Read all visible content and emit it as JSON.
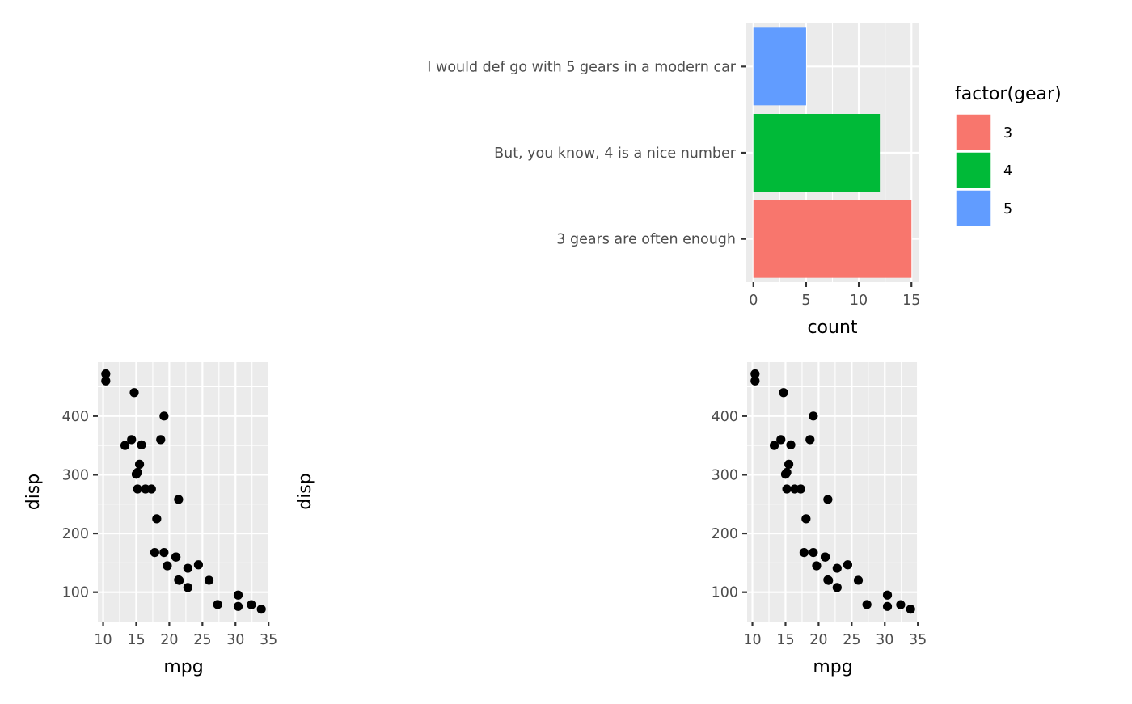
{
  "chart_data": [
    {
      "type": "bar",
      "orientation": "horizontal",
      "categories": [
        "3 gears are often enough",
        "But, you know, 4 is a nice number",
        "I would def go with 5 gears in a modern car"
      ],
      "values": [
        15,
        12,
        5
      ],
      "colors": [
        "#F8766D",
        "#00BA38",
        "#619CFF"
      ],
      "xlabel": "count",
      "ylabel": "",
      "xlim": [
        -0.75,
        15.75
      ],
      "xticks": [
        0,
        5,
        10,
        15
      ],
      "grid": true,
      "legend": {
        "title": "factor(gear)",
        "position": "right",
        "entries": [
          {
            "label": "3",
            "color": "#F8766D"
          },
          {
            "label": "4",
            "color": "#00BA38"
          },
          {
            "label": "5",
            "color": "#619CFF"
          }
        ]
      }
    },
    {
      "type": "scatter",
      "xlabel": "mpg",
      "ylabel": "disp",
      "xlim": [
        9.2,
        35.1
      ],
      "ylim": [
        50,
        492
      ],
      "xticks": [
        10,
        15,
        20,
        25,
        30,
        35
      ],
      "yticks": [
        100,
        200,
        300,
        400
      ],
      "grid": true,
      "points": [
        [
          21.0,
          160
        ],
        [
          21.0,
          160
        ],
        [
          22.8,
          108
        ],
        [
          21.4,
          258
        ],
        [
          18.7,
          360
        ],
        [
          18.1,
          225
        ],
        [
          14.3,
          360
        ],
        [
          24.4,
          146.7
        ],
        [
          22.8,
          140.8
        ],
        [
          19.2,
          167.6
        ],
        [
          17.8,
          167.6
        ],
        [
          16.4,
          275.8
        ],
        [
          17.3,
          275.8
        ],
        [
          15.2,
          275.8
        ],
        [
          10.4,
          472
        ],
        [
          10.4,
          460
        ],
        [
          14.7,
          440
        ],
        [
          32.4,
          78.7
        ],
        [
          30.4,
          75.7
        ],
        [
          33.9,
          71.1
        ],
        [
          21.5,
          120.1
        ],
        [
          15.5,
          318
        ],
        [
          15.2,
          304
        ],
        [
          13.3,
          350
        ],
        [
          19.2,
          400
        ],
        [
          27.3,
          79
        ],
        [
          26.0,
          120.3
        ],
        [
          30.4,
          95.1
        ],
        [
          15.8,
          351
        ],
        [
          19.7,
          145
        ],
        [
          15.0,
          301
        ],
        [
          21.4,
          121
        ]
      ]
    },
    {
      "type": "empty",
      "ylabel": "disp"
    },
    {
      "type": "scatter",
      "xlabel": "mpg",
      "ylabel": "",
      "xlim": [
        9.2,
        35.1
      ],
      "ylim": [
        50,
        492
      ],
      "xticks": [
        10,
        15,
        20,
        25,
        30,
        35
      ],
      "yticks": [
        100,
        200,
        300,
        400
      ],
      "grid": true,
      "points": [
        [
          21.0,
          160
        ],
        [
          21.0,
          160
        ],
        [
          22.8,
          108
        ],
        [
          21.4,
          258
        ],
        [
          18.7,
          360
        ],
        [
          18.1,
          225
        ],
        [
          14.3,
          360
        ],
        [
          24.4,
          146.7
        ],
        [
          22.8,
          140.8
        ],
        [
          19.2,
          167.6
        ],
        [
          17.8,
          167.6
        ],
        [
          16.4,
          275.8
        ],
        [
          17.3,
          275.8
        ],
        [
          15.2,
          275.8
        ],
        [
          10.4,
          472
        ],
        [
          10.4,
          460
        ],
        [
          14.7,
          440
        ],
        [
          32.4,
          78.7
        ],
        [
          30.4,
          75.7
        ],
        [
          33.9,
          71.1
        ],
        [
          21.5,
          120.1
        ],
        [
          15.5,
          318
        ],
        [
          15.2,
          304
        ],
        [
          13.3,
          350
        ],
        [
          19.2,
          400
        ],
        [
          27.3,
          79
        ],
        [
          26.0,
          120.3
        ],
        [
          30.4,
          95.1
        ],
        [
          15.8,
          351
        ],
        [
          19.7,
          145
        ],
        [
          15.0,
          301
        ],
        [
          21.4,
          121
        ]
      ]
    }
  ]
}
